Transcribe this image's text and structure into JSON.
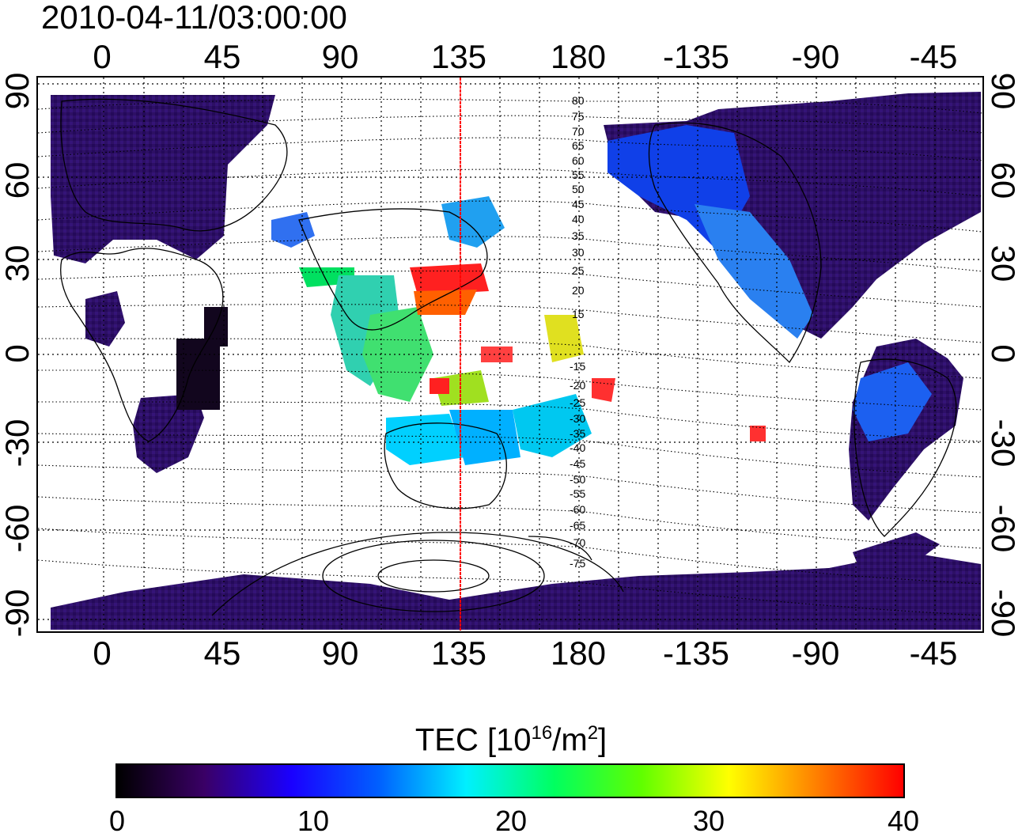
{
  "timestamp": "2010-04-11/03:00:00",
  "longitude_ticks": [
    "0",
    "45",
    "90",
    "135",
    "180",
    "-135",
    "-90",
    "-45"
  ],
  "latitude_ticks": [
    "90",
    "60",
    "30",
    "0",
    "-30",
    "-60",
    "-90"
  ],
  "contour_labels_north": [
    "80",
    "75",
    "70",
    "65",
    "60",
    "55",
    "50",
    "45",
    "40",
    "35",
    "30",
    "25",
    "20",
    "15"
  ],
  "contour_labels_south": [
    "-15",
    "-20",
    "-25",
    "-30",
    "-35",
    "-40",
    "-45",
    "-50",
    "-55",
    "-60",
    "-65",
    "-70",
    "-75"
  ],
  "colorbar": {
    "title_prefix": "TEC  [10",
    "title_exp1": "16",
    "title_mid": "/m",
    "title_exp2": "2",
    "title_suffix": "]",
    "ticks": [
      "0",
      "10",
      "20",
      "30",
      "40"
    ],
    "range": [
      0,
      40
    ],
    "colors": [
      "#000000",
      "#3a0066",
      "#1a00ff",
      "#0060ff",
      "#00f0ff",
      "#00ff60",
      "#60ff00",
      "#ffff00",
      "#ff8000",
      "#ff0000"
    ]
  },
  "colors": {
    "background_low": "#2a1060",
    "meridian_line": "#ff0000",
    "grid": "#000000"
  },
  "marked_meridian": "135"
}
